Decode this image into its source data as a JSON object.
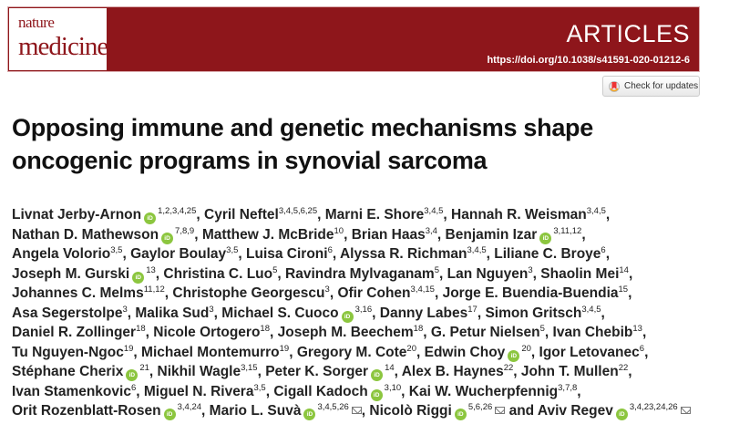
{
  "header": {
    "journal_line1": "nature",
    "journal_line2": "medicine",
    "section": "ARTICLES",
    "doi": "https://doi.org/10.1038/s41591-020-01212-6",
    "brand_color": "#8e161b"
  },
  "check_updates": {
    "label": "Check for updates",
    "icon": "crossmark-icon"
  },
  "title_lines": [
    "Opposing immune and genetic mechanisms shape",
    "oncogenic programs in synovial sarcoma"
  ],
  "orcid_label": "iD",
  "authors": [
    [
      {
        "name": "Livnat Jerby-Arnon",
        "orcid": true,
        "sup": "1,2,3,4,25",
        "sep": ", "
      },
      {
        "name": "Cyril Neftel",
        "sup": "3,4,5,6,25",
        "sep": ", "
      },
      {
        "name": "Marni E. Shore",
        "sup": "3,4,5",
        "sep": ", "
      },
      {
        "name": "Hannah R. Weisman",
        "sup": "3,4,5",
        "sep": ","
      }
    ],
    [
      {
        "name": "Nathan D. Mathewson",
        "orcid": true,
        "sup": "7,8,9",
        "sep": ", "
      },
      {
        "name": "Matthew J. McBride",
        "sup": "10",
        "sep": ", "
      },
      {
        "name": "Brian Haas",
        "sup": "3,4",
        "sep": ", "
      },
      {
        "name": "Benjamin Izar",
        "orcid": true,
        "sup": "3,11,12",
        "sep": ","
      }
    ],
    [
      {
        "name": "Angela Volorio",
        "sup": "3,5",
        "sep": ", "
      },
      {
        "name": "Gaylor Boulay",
        "sup": "3,5",
        "sep": ", "
      },
      {
        "name": "Luisa Cironi",
        "sup": "6",
        "sep": ", "
      },
      {
        "name": "Alyssa R. Richman",
        "sup": "3,4,5",
        "sep": ", "
      },
      {
        "name": "Liliane C. Broye",
        "sup": "6",
        "sep": ","
      }
    ],
    [
      {
        "name": "Joseph M. Gurski",
        "orcid": true,
        "sup": "13",
        "sep": ", "
      },
      {
        "name": "Christina C. Luo",
        "sup": "5",
        "sep": ", "
      },
      {
        "name": "Ravindra Mylvaganam",
        "sup": "5",
        "sep": ", "
      },
      {
        "name": "Lan Nguyen",
        "sup": "3",
        "sep": ", "
      },
      {
        "name": "Shaolin Mei",
        "sup": "14",
        "sep": ","
      }
    ],
    [
      {
        "name": "Johannes C. Melms",
        "sup": "11,12",
        "sep": ", "
      },
      {
        "name": "Christophe Georgescu",
        "sup": "3",
        "sep": ", "
      },
      {
        "name": "Ofir Cohen",
        "sup": "3,4,15",
        "sep": ", "
      },
      {
        "name": "Jorge E. Buendia-Buendia",
        "sup": "15",
        "sep": ","
      }
    ],
    [
      {
        "name": "Asa Segerstolpe",
        "sup": "3",
        "sep": ", "
      },
      {
        "name": "Malika Sud",
        "sup": "3",
        "sep": ", "
      },
      {
        "name": "Michael S. Cuoco",
        "orcid": true,
        "sup": "3,16",
        "sep": ", "
      },
      {
        "name": "Danny Labes",
        "sup": "17",
        "sep": ", "
      },
      {
        "name": "Simon Gritsch",
        "sup": "3,4,5",
        "sep": ","
      }
    ],
    [
      {
        "name": "Daniel R. Zollinger",
        "sup": "18",
        "sep": ", "
      },
      {
        "name": "Nicole Ortogero",
        "sup": "18",
        "sep": ", "
      },
      {
        "name": "Joseph M. Beechem",
        "sup": "18",
        "sep": ", "
      },
      {
        "name": "G. Petur Nielsen",
        "sup": "5",
        "sep": ", "
      },
      {
        "name": "Ivan Chebib",
        "sup": "13",
        "sep": ","
      }
    ],
    [
      {
        "name": "Tu Nguyen-Ngoc",
        "sup": "19",
        "sep": ", "
      },
      {
        "name": "Michael Montemurro",
        "sup": "19",
        "sep": ", "
      },
      {
        "name": "Gregory M. Cote",
        "sup": "20",
        "sep": ", "
      },
      {
        "name": "Edwin Choy",
        "orcid": true,
        "sup": "20",
        "sep": ", "
      },
      {
        "name": "Igor Letovanec",
        "sup": "6",
        "sep": ","
      }
    ],
    [
      {
        "name": "Stéphane Cherix",
        "orcid": true,
        "sup": "21",
        "sep": ", "
      },
      {
        "name": "Nikhil Wagle",
        "sup": "3,15",
        "sep": ", "
      },
      {
        "name": "Peter K. Sorger",
        "orcid": true,
        "sup": "14",
        "sep": ", "
      },
      {
        "name": "Alex B. Haynes",
        "sup": "22",
        "sep": ", "
      },
      {
        "name": "John T. Mullen",
        "sup": "22",
        "sep": ","
      }
    ],
    [
      {
        "name": "Ivan Stamenkovic",
        "sup": "6",
        "sep": ", "
      },
      {
        "name": "Miguel N. Rivera",
        "sup": "3,5",
        "sep": ", "
      },
      {
        "name": "Cigall Kadoch",
        "orcid": true,
        "sup": "3,10",
        "sep": ", "
      },
      {
        "name": "Kai W. Wucherpfennig",
        "sup": "3,7,8",
        "sep": ","
      }
    ],
    [
      {
        "name": "Orit Rozenblatt-Rosen",
        "orcid": true,
        "sup": "3,4,24",
        "sep": ", "
      },
      {
        "name": "Mario L. Suvà",
        "orcid": true,
        "sup": "3,4,5,26",
        "email": true,
        "sep": ", "
      },
      {
        "name": "Nicolò Riggi",
        "orcid": true,
        "sup": "5,6,26",
        "email": true,
        "sep": " and "
      },
      {
        "name": "Aviv Regev",
        "orcid": true,
        "sup": "3,4,23,24,26",
        "email": true,
        "sep": ""
      }
    ]
  ]
}
